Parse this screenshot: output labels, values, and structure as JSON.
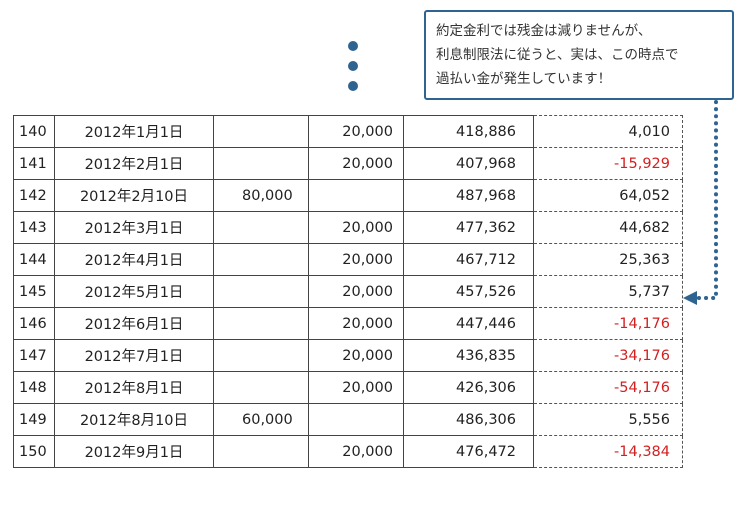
{
  "callout": {
    "lines": [
      "約定金利では残金は減りませんが、",
      "利息制限法に従うと、実は、この時点で",
      "過払い金が発生しています！"
    ]
  },
  "colors": {
    "accent": "#2f6390",
    "negative": "#d42020",
    "text": "#222222"
  },
  "table": {
    "rows": [
      {
        "no": "140",
        "date": "2012年1月1日",
        "added": "",
        "payment": "20,000",
        "balance": "418,886",
        "interest": "4,010",
        "negative": false
      },
      {
        "no": "141",
        "date": "2012年2月1日",
        "added": "",
        "payment": "20,000",
        "balance": "407,968",
        "interest": "-15,929",
        "negative": true
      },
      {
        "no": "142",
        "date": "2012年2月10日",
        "added": "80,000",
        "payment": "",
        "balance": "487,968",
        "interest": "64,052",
        "negative": false
      },
      {
        "no": "143",
        "date": "2012年3月1日",
        "added": "",
        "payment": "20,000",
        "balance": "477,362",
        "interest": "44,682",
        "negative": false
      },
      {
        "no": "144",
        "date": "2012年4月1日",
        "added": "",
        "payment": "20,000",
        "balance": "467,712",
        "interest": "25,363",
        "negative": false
      },
      {
        "no": "145",
        "date": "2012年5月1日",
        "added": "",
        "payment": "20,000",
        "balance": "457,526",
        "interest": "5,737",
        "negative": false
      },
      {
        "no": "146",
        "date": "2012年6月1日",
        "added": "",
        "payment": "20,000",
        "balance": "447,446",
        "interest": "-14,176",
        "negative": true
      },
      {
        "no": "147",
        "date": "2012年7月1日",
        "added": "",
        "payment": "20,000",
        "balance": "436,835",
        "interest": "-34,176",
        "negative": true
      },
      {
        "no": "148",
        "date": "2012年8月1日",
        "added": "",
        "payment": "20,000",
        "balance": "426,306",
        "interest": "-54,176",
        "negative": true
      },
      {
        "no": "149",
        "date": "2012年8月10日",
        "added": "60,000",
        "payment": "",
        "balance": "486,306",
        "interest": "5,556",
        "negative": false
      },
      {
        "no": "150",
        "date": "2012年9月1日",
        "added": "",
        "payment": "20,000",
        "balance": "476,472",
        "interest": "-14,384",
        "negative": true
      }
    ]
  }
}
